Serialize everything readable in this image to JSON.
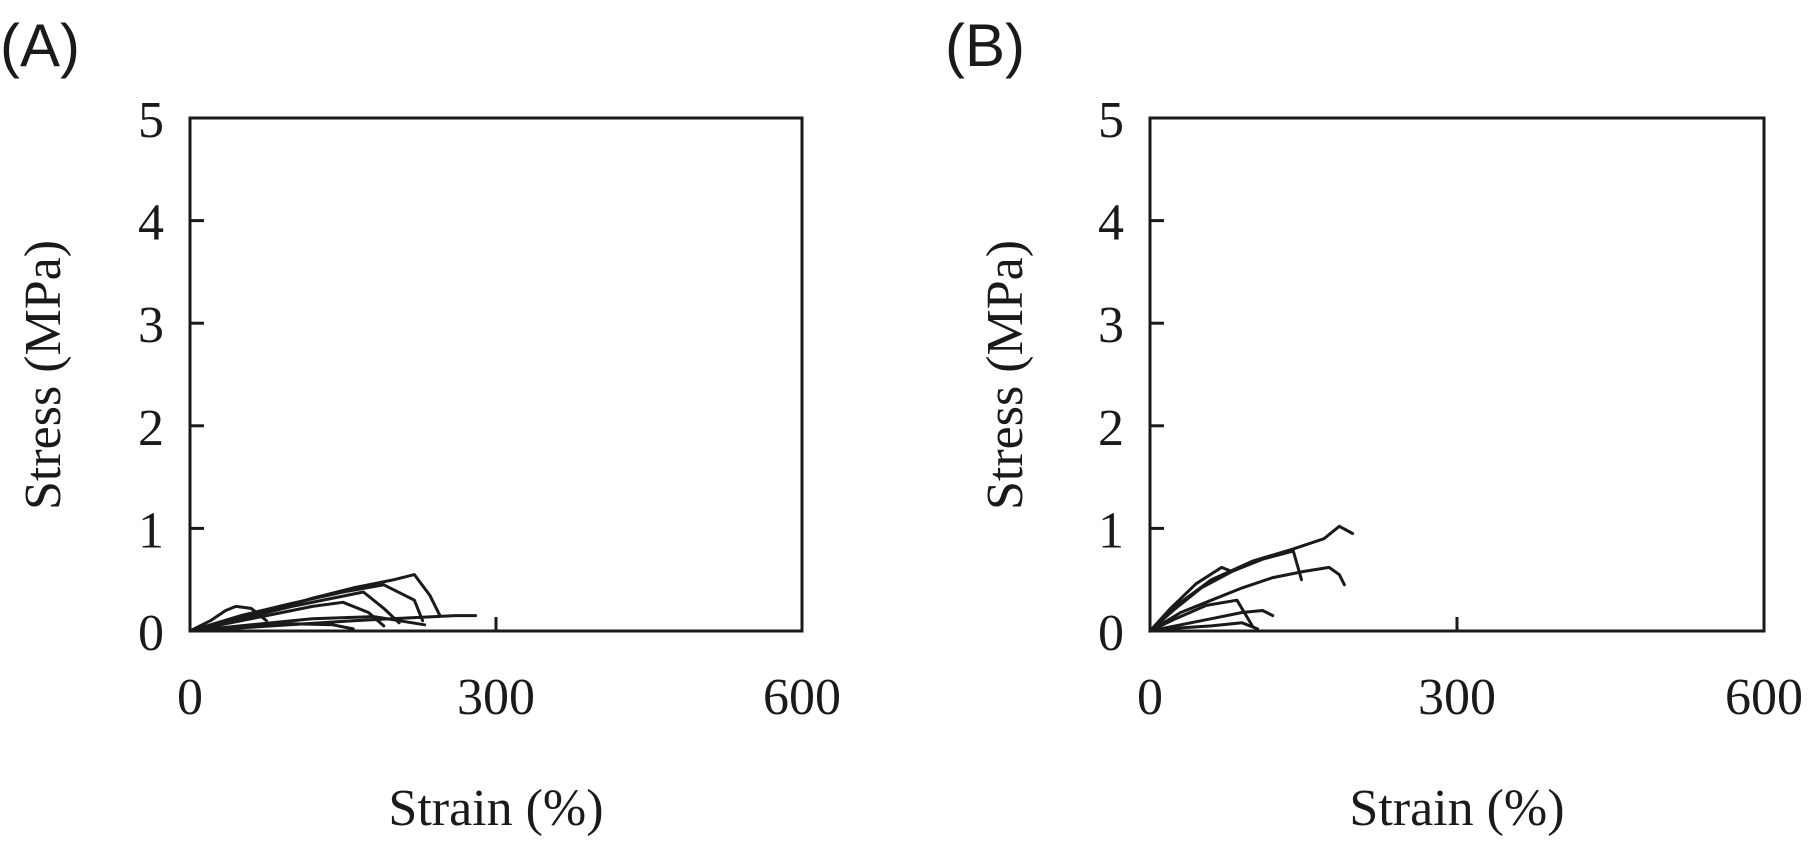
{
  "chart_data": [
    {
      "type": "line",
      "panel_label": "(A)",
      "xlabel": "Strain (%)",
      "ylabel": "Stress (MPa)",
      "xlim": [
        0,
        600
      ],
      "ylim": [
        0,
        5
      ],
      "xticks": [
        "0",
        "300",
        "600"
      ],
      "yticks": [
        "0",
        "1",
        "2",
        "3",
        "4",
        "5"
      ],
      "grid": false,
      "legend": "none",
      "line_color": "#1a1a1a",
      "series": [
        {
          "x": [
            0,
            20,
            35,
            45,
            60,
            75
          ],
          "y": [
            0,
            0.1,
            0.2,
            0.24,
            0.22,
            0.1
          ]
        },
        {
          "x": [
            0,
            40,
            80,
            120,
            160,
            200,
            220,
            235,
            245
          ],
          "y": [
            0,
            0.1,
            0.2,
            0.32,
            0.42,
            0.5,
            0.55,
            0.35,
            0.15
          ]
        },
        {
          "x": [
            0,
            50,
            100,
            150,
            190,
            220,
            228
          ],
          "y": [
            0,
            0.15,
            0.27,
            0.38,
            0.45,
            0.3,
            0.1
          ]
        },
        {
          "x": [
            0,
            50,
            100,
            150,
            170,
            190,
            205
          ],
          "y": [
            0,
            0.12,
            0.24,
            0.34,
            0.38,
            0.22,
            0.08
          ]
        },
        {
          "x": [
            0,
            40,
            80,
            120,
            150,
            175,
            190
          ],
          "y": [
            0,
            0.08,
            0.16,
            0.24,
            0.28,
            0.18,
            0.05
          ]
        },
        {
          "x": [
            0,
            60,
            120,
            180,
            230
          ],
          "y": [
            0,
            0.06,
            0.12,
            0.14,
            0.06
          ]
        },
        {
          "x": [
            0,
            80,
            160,
            240,
            260,
            280
          ],
          "y": [
            0,
            0.05,
            0.1,
            0.14,
            0.15,
            0.15
          ]
        },
        {
          "x": [
            0,
            60,
            100,
            140,
            160
          ],
          "y": [
            0,
            0.04,
            0.07,
            0.06,
            0.02
          ]
        }
      ]
    },
    {
      "type": "line",
      "panel_label": "(B)",
      "xlabel": "Strain (%)",
      "ylabel": "Stress (MPa)",
      "xlim": [
        0,
        600
      ],
      "ylim": [
        0,
        5
      ],
      "xticks": [
        "0",
        "300",
        "600"
      ],
      "yticks": [
        "0",
        "1",
        "2",
        "3",
        "4",
        "5"
      ],
      "grid": false,
      "legend": "none",
      "line_color": "#1a1a1a",
      "series": [
        {
          "x": [
            0,
            30,
            60,
            100,
            140,
            170,
            185,
            198
          ],
          "y": [
            0,
            0.28,
            0.5,
            0.68,
            0.8,
            0.9,
            1.02,
            0.95
          ]
        },
        {
          "x": [
            0,
            25,
            50,
            80,
            110,
            140,
            148
          ],
          "y": [
            0,
            0.22,
            0.42,
            0.58,
            0.7,
            0.78,
            0.5
          ]
        },
        {
          "x": [
            0,
            30,
            60,
            90,
            120,
            150,
            175,
            185,
            190
          ],
          "y": [
            0,
            0.18,
            0.3,
            0.42,
            0.52,
            0.58,
            0.62,
            0.55,
            0.45
          ]
        },
        {
          "x": [
            0,
            20,
            45,
            70,
            80
          ],
          "y": [
            0,
            0.22,
            0.46,
            0.62,
            0.58
          ]
        },
        {
          "x": [
            0,
            25,
            55,
            85,
            100
          ],
          "y": [
            0,
            0.12,
            0.25,
            0.3,
            0.05
          ]
        },
        {
          "x": [
            0,
            30,
            60,
            90,
            110,
            120
          ],
          "y": [
            0,
            0.06,
            0.12,
            0.18,
            0.2,
            0.15
          ]
        },
        {
          "x": [
            0,
            30,
            60,
            90,
            105
          ],
          "y": [
            0,
            0.03,
            0.05,
            0.08,
            0.02
          ]
        }
      ]
    }
  ]
}
